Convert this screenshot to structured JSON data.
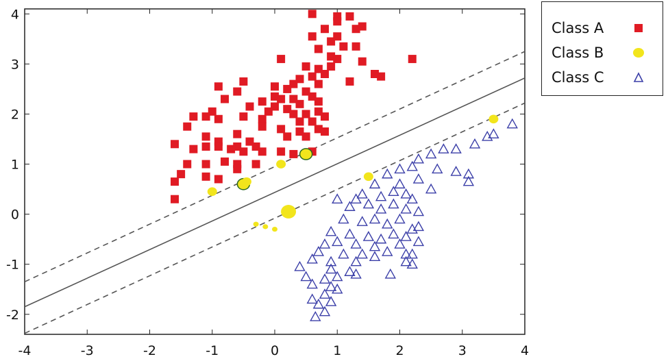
{
  "chart_data": {
    "type": "scatter",
    "title": "",
    "xlabel": "",
    "ylabel": "",
    "xlim": [
      -4,
      4
    ],
    "ylim": [
      -2.4,
      4.1
    ],
    "x_ticks": [
      "-4",
      "-3",
      "-2",
      "-1",
      "0",
      "1",
      "2",
      "3",
      "4"
    ],
    "y_ticks": [
      "-2",
      "-1",
      "0",
      "1",
      "2",
      "3",
      "4"
    ],
    "legend_position": "outside-top-right",
    "colors": {
      "class_a": "#e01b24",
      "class_b": "#f2e51c",
      "class_c": "#3b3fa8",
      "line": "#555555"
    },
    "series": [
      {
        "name": "Class A",
        "marker": "square",
        "points": [
          [
            0.6,
            4.0
          ],
          [
            1.0,
            3.95
          ],
          [
            1.2,
            3.95
          ],
          [
            1.0,
            3.85
          ],
          [
            0.8,
            3.7
          ],
          [
            0.6,
            3.55
          ],
          [
            0.9,
            3.45
          ],
          [
            1.3,
            3.7
          ],
          [
            1.4,
            3.75
          ],
          [
            0.7,
            3.3
          ],
          [
            1.0,
            3.55
          ],
          [
            1.1,
            3.35
          ],
          [
            0.9,
            3.15
          ],
          [
            1.0,
            3.1
          ],
          [
            1.3,
            3.35
          ],
          [
            1.4,
            3.05
          ],
          [
            0.1,
            3.1
          ],
          [
            2.2,
            3.1
          ],
          [
            1.6,
            2.8
          ],
          [
            1.7,
            2.75
          ],
          [
            1.2,
            2.65
          ],
          [
            0.9,
            2.95
          ],
          [
            0.5,
            2.95
          ],
          [
            0.7,
            2.9
          ],
          [
            0.8,
            2.8
          ],
          [
            0.6,
            2.75
          ],
          [
            0.4,
            2.7
          ],
          [
            0.7,
            2.6
          ],
          [
            0.3,
            2.6
          ],
          [
            0.5,
            2.45
          ],
          [
            0.2,
            2.5
          ],
          [
            0.0,
            2.55
          ],
          [
            -0.5,
            2.65
          ],
          [
            -0.6,
            2.45
          ],
          [
            -0.9,
            2.55
          ],
          [
            -0.8,
            2.3
          ],
          [
            -0.4,
            2.15
          ],
          [
            0.0,
            2.35
          ],
          [
            0.1,
            2.3
          ],
          [
            0.3,
            2.3
          ],
          [
            0.6,
            2.35
          ],
          [
            0.7,
            2.25
          ],
          [
            -0.2,
            2.25
          ],
          [
            0.0,
            2.15
          ],
          [
            -0.1,
            2.05
          ],
          [
            0.2,
            2.1
          ],
          [
            0.3,
            2.0
          ],
          [
            0.5,
            2.0
          ],
          [
            0.4,
            2.2
          ],
          [
            0.7,
            2.05
          ],
          [
            0.8,
            1.95
          ],
          [
            0.6,
            1.85
          ],
          [
            0.4,
            1.85
          ],
          [
            -0.2,
            1.9
          ],
          [
            -0.5,
            1.95
          ],
          [
            -0.2,
            1.75
          ],
          [
            0.1,
            1.7
          ],
          [
            0.4,
            1.65
          ],
          [
            0.7,
            1.7
          ],
          [
            0.8,
            1.65
          ],
          [
            0.2,
            1.55
          ],
          [
            0.5,
            1.55
          ],
          [
            -0.4,
            1.45
          ],
          [
            -0.3,
            1.35
          ],
          [
            -1.0,
            2.05
          ],
          [
            -1.3,
            1.95
          ],
          [
            -0.9,
            1.9
          ],
          [
            -1.1,
            1.95
          ],
          [
            -1.4,
            1.75
          ],
          [
            -1.1,
            1.55
          ],
          [
            -0.9,
            1.45
          ],
          [
            -0.6,
            1.6
          ],
          [
            -0.6,
            1.35
          ],
          [
            -1.6,
            1.4
          ],
          [
            -1.3,
            1.3
          ],
          [
            -1.1,
            1.35
          ],
          [
            -0.9,
            1.35
          ],
          [
            -0.7,
            1.3
          ],
          [
            -0.5,
            1.25
          ],
          [
            -0.2,
            1.25
          ],
          [
            0.1,
            1.25
          ],
          [
            0.3,
            1.2
          ],
          [
            0.6,
            1.25
          ],
          [
            -1.4,
            1.0
          ],
          [
            -1.1,
            1.0
          ],
          [
            -0.8,
            1.05
          ],
          [
            -0.6,
            1.0
          ],
          [
            -0.3,
            1.0
          ],
          [
            -1.5,
            0.8
          ],
          [
            -1.6,
            0.65
          ],
          [
            -1.1,
            0.75
          ],
          [
            -0.9,
            0.7
          ],
          [
            -0.6,
            0.9
          ],
          [
            -1.6,
            0.3
          ]
        ]
      },
      {
        "name": "Class B",
        "marker": "circle",
        "points": [
          [
            3.5,
            1.9
          ],
          [
            0.5,
            1.2
          ],
          [
            0.1,
            1.0
          ],
          [
            1.5,
            0.75
          ],
          [
            -0.5,
            0.6
          ],
          [
            -1.0,
            0.45
          ],
          [
            -0.45,
            0.65
          ],
          [
            0.22,
            0.05
          ],
          [
            -0.3,
            -0.2
          ],
          [
            -0.15,
            -0.25
          ],
          [
            0.0,
            -0.3
          ]
        ]
      },
      {
        "name": "Class C",
        "marker": "triangle",
        "points": [
          [
            3.8,
            1.8
          ],
          [
            3.5,
            1.6
          ],
          [
            3.4,
            1.55
          ],
          [
            3.2,
            1.4
          ],
          [
            2.9,
            1.3
          ],
          [
            2.7,
            1.3
          ],
          [
            2.5,
            1.2
          ],
          [
            2.3,
            1.1
          ],
          [
            2.2,
            0.95
          ],
          [
            2.0,
            0.9
          ],
          [
            2.6,
            0.9
          ],
          [
            2.9,
            0.85
          ],
          [
            3.1,
            0.8
          ],
          [
            3.1,
            0.65
          ],
          [
            1.8,
            0.8
          ],
          [
            1.6,
            0.6
          ],
          [
            2.3,
            0.7
          ],
          [
            2.0,
            0.6
          ],
          [
            2.5,
            0.5
          ],
          [
            1.9,
            0.45
          ],
          [
            1.7,
            0.35
          ],
          [
            1.4,
            0.4
          ],
          [
            2.1,
            0.4
          ],
          [
            2.2,
            0.3
          ],
          [
            1.3,
            0.3
          ],
          [
            1.0,
            0.3
          ],
          [
            1.2,
            0.15
          ],
          [
            1.5,
            0.2
          ],
          [
            1.7,
            0.1
          ],
          [
            1.9,
            0.2
          ],
          [
            2.1,
            0.1
          ],
          [
            2.3,
            0.05
          ],
          [
            1.1,
            -0.1
          ],
          [
            1.4,
            -0.15
          ],
          [
            1.6,
            -0.1
          ],
          [
            1.8,
            -0.2
          ],
          [
            2.0,
            -0.1
          ],
          [
            2.3,
            -0.25
          ],
          [
            0.9,
            -0.35
          ],
          [
            1.2,
            -0.4
          ],
          [
            1.5,
            -0.45
          ],
          [
            1.7,
            -0.5
          ],
          [
            1.9,
            -0.4
          ],
          [
            2.1,
            -0.45
          ],
          [
            2.2,
            -0.3
          ],
          [
            0.8,
            -0.6
          ],
          [
            1.0,
            -0.55
          ],
          [
            1.3,
            -0.6
          ],
          [
            1.6,
            -0.65
          ],
          [
            2.0,
            -0.6
          ],
          [
            2.3,
            -0.55
          ],
          [
            0.7,
            -0.75
          ],
          [
            1.1,
            -0.8
          ],
          [
            1.4,
            -0.8
          ],
          [
            1.8,
            -0.75
          ],
          [
            2.1,
            -0.8
          ],
          [
            0.6,
            -0.9
          ],
          [
            0.9,
            -0.95
          ],
          [
            1.3,
            -0.95
          ],
          [
            1.6,
            -0.85
          ],
          [
            2.1,
            -0.95
          ],
          [
            2.2,
            -0.8
          ],
          [
            0.9,
            -1.1
          ],
          [
            1.2,
            -1.15
          ],
          [
            0.4,
            -1.05
          ],
          [
            0.5,
            -1.25
          ],
          [
            0.8,
            -1.3
          ],
          [
            1.0,
            -1.25
          ],
          [
            1.3,
            -1.2
          ],
          [
            1.85,
            -1.2
          ],
          [
            2.2,
            -1.0
          ],
          [
            0.6,
            -1.4
          ],
          [
            0.9,
            -1.45
          ],
          [
            1.0,
            -1.5
          ],
          [
            0.8,
            -1.6
          ],
          [
            0.9,
            -1.75
          ],
          [
            0.6,
            -1.7
          ],
          [
            0.7,
            -1.8
          ],
          [
            0.8,
            -1.95
          ],
          [
            0.65,
            -2.05
          ]
        ]
      }
    ],
    "lines": [
      {
        "name": "decision-boundary",
        "style": "solid",
        "points": [
          [
            -4,
            -1.85
          ],
          [
            4,
            2.72
          ]
        ]
      },
      {
        "name": "upper-margin",
        "style": "dashed",
        "points": [
          [
            -4,
            -1.35
          ],
          [
            4,
            3.25
          ]
        ]
      },
      {
        "name": "lower-margin",
        "style": "dashed",
        "points": [
          [
            -4,
            -2.38
          ],
          [
            4,
            2.22
          ]
        ]
      }
    ]
  }
}
